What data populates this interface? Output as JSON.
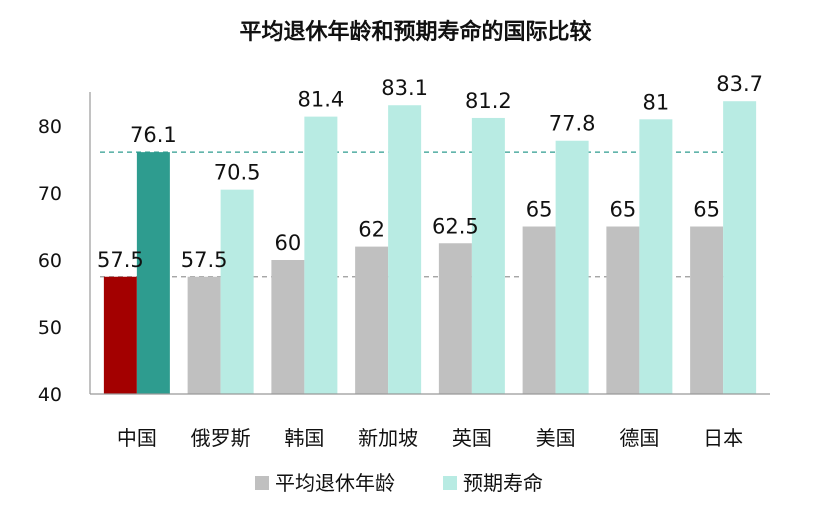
{
  "chart_data": {
    "type": "bar",
    "title": "平均退休年龄和预期寿命的国际比较",
    "categories": [
      "中国",
      "俄罗斯",
      "韩国",
      "新加坡",
      "英国",
      "美国",
      "德国",
      "日本"
    ],
    "series": [
      {
        "name": "平均退休年龄",
        "values": [
          57.5,
          57.5,
          60,
          62,
          62.5,
          65,
          65,
          65
        ],
        "labels": [
          "57.5",
          "57.5",
          "60",
          "62",
          "62.5",
          "65",
          "65",
          "65"
        ]
      },
      {
        "name": "预期寿命",
        "values": [
          76.1,
          70.5,
          81.4,
          83.1,
          81.2,
          77.8,
          81,
          83.7
        ],
        "labels": [
          "76.1",
          "70.5",
          "81.4",
          "83.1",
          "81.2",
          "77.8",
          "81",
          "83.7"
        ]
      }
    ],
    "ylim": [
      40,
      85
    ],
    "yticks": [
      "40",
      "50",
      "60",
      "70",
      "80"
    ],
    "reference_lines": [
      57.5,
      76.1
    ],
    "legend_position": "bottom",
    "colors": {
      "retire": "#c0c0c0",
      "life": "#b8ebe3",
      "china_retire": "#a30000",
      "china_life": "#2e9c8f",
      "reference_line": "#2e9c8f",
      "reference_line_low": "#999999",
      "axis": "#999999"
    }
  }
}
